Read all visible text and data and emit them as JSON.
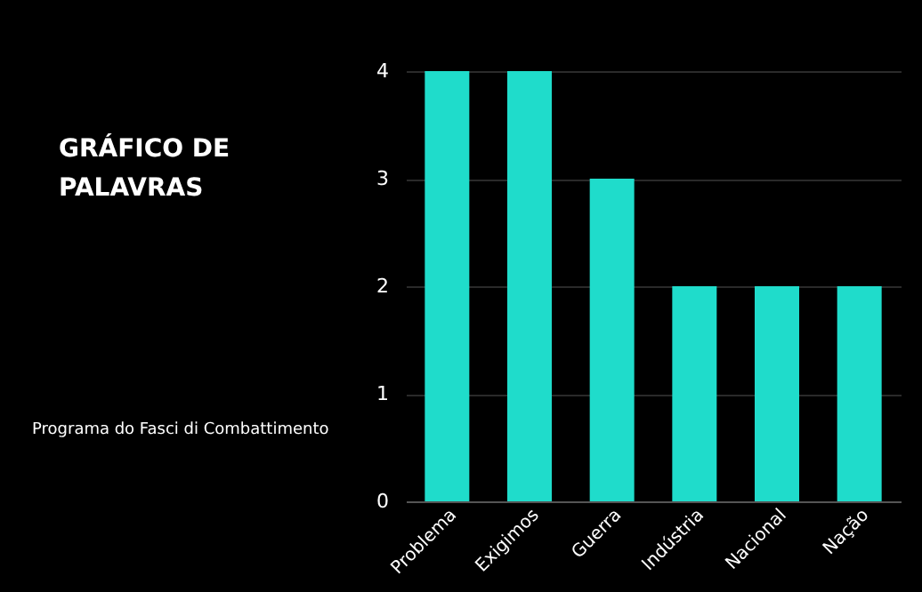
{
  "chart_data": {
    "type": "bar",
    "title": "GRÁFICO DE PALAVRAS",
    "subtitle": "Programa do Fasci di Combattimento",
    "categories": [
      "Problema",
      "Exigimos",
      "Guerra",
      "Indústria",
      "Nacional",
      "Nação"
    ],
    "values": [
      4,
      4,
      3,
      2,
      2,
      2
    ],
    "color": "#1fdccb",
    "ylim": [
      0,
      4
    ],
    "yticks": [
      0,
      1,
      2,
      3,
      4
    ],
    "grid": "y"
  }
}
